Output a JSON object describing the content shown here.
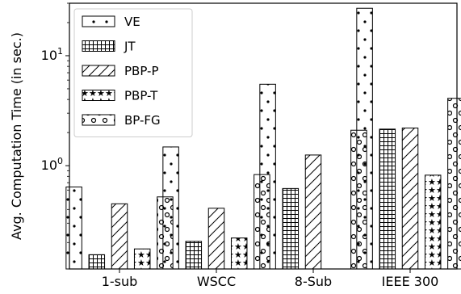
{
  "chart_data": {
    "type": "bar",
    "yscale": "log",
    "ylabel": "Avg. Computation Time (in sec.)",
    "xlabel": "",
    "ylim": [
      0.115,
      30
    ],
    "yticks": [
      {
        "value": 1,
        "base": "10",
        "exp": "0"
      },
      {
        "value": 10,
        "base": "10",
        "exp": "1"
      }
    ],
    "categories": [
      "1-sub",
      "WSCC",
      "8-Sub",
      "IEEE 300"
    ],
    "legend_position": "top-left",
    "grid": false,
    "series": [
      {
        "name": "VE",
        "pattern": "dots",
        "values": [
          0.64,
          1.48,
          5.5,
          27
        ]
      },
      {
        "name": "JT",
        "pattern": "grid",
        "values": [
          0.155,
          0.205,
          0.62,
          2.15
        ]
      },
      {
        "name": "PBP-P",
        "pattern": "diag",
        "values": [
          0.45,
          0.41,
          1.25,
          2.2
        ]
      },
      {
        "name": "PBP-T",
        "pattern": "stars",
        "values": [
          0.175,
          0.22,
          null,
          0.82
        ]
      },
      {
        "name": "BP-FG",
        "pattern": "rings",
        "values": [
          0.52,
          0.83,
          2.1,
          4.1
        ]
      }
    ]
  }
}
